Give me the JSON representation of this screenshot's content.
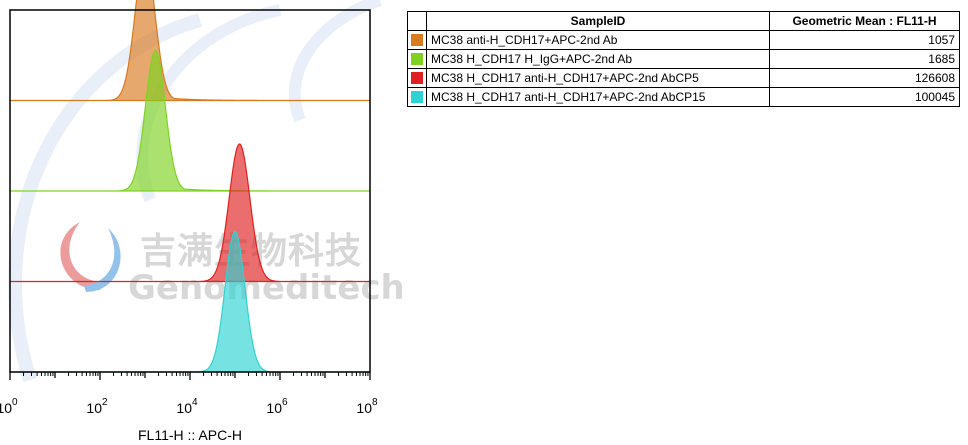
{
  "chart_data": {
    "type": "area",
    "xlabel": "FL11-H :: APC-H",
    "xscale": "log",
    "xlim": [
      1,
      100000000
    ],
    "xticks": [
      {
        "value": 1,
        "base": "10",
        "exp": "0"
      },
      {
        "value": 100,
        "base": "10",
        "exp": "2"
      },
      {
        "value": 10000,
        "base": "10",
        "exp": "4"
      },
      {
        "value": 1000000,
        "base": "10",
        "exp": "6"
      },
      {
        "value": 100000000,
        "base": "10",
        "exp": "8"
      }
    ],
    "series": [
      {
        "name": "MC38 anti-H_CDH17+APC-2nd Ab",
        "color": "#d87a1e",
        "peak_x": 1000,
        "width_decades": 0.22,
        "height": 1.0
      },
      {
        "name": "MC38 H_CDH17 H_IgG+APC-2nd Ab",
        "color": "#7ed321",
        "peak_x": 1700,
        "width_decades": 0.22,
        "height": 0.97
      },
      {
        "name": "MC38 H_CDH17 anti-H_CDH17+APC-2nd AbCP5",
        "color": "#e02020",
        "peak_x": 126000,
        "width_decades": 0.23,
        "height": 0.95
      },
      {
        "name": "MC38 H_CDH17 anti-H_CDH17+APC-2nd AbCP15",
        "color": "#2ed3d3",
        "peak_x": 100000,
        "width_decades": 0.22,
        "height": 0.97
      }
    ]
  },
  "table": {
    "header_sample": "SampleID",
    "header_value": "Geometric Mean : FL11-H",
    "rows": [
      {
        "name": "MC38 anti-H_CDH17+APC-2nd Ab",
        "value": "1057",
        "color": "#d87a1e"
      },
      {
        "name": "MC38 H_CDH17 H_IgG+APC-2nd Ab",
        "value": "1685",
        "color": "#7ed321"
      },
      {
        "name": "MC38 H_CDH17 anti-H_CDH17+APC-2nd AbCP5",
        "value": "126608",
        "color": "#e02020"
      },
      {
        "name": "MC38 H_CDH17 anti-H_CDH17+APC-2nd AbCP15",
        "value": "100045",
        "color": "#2ed3d3"
      }
    ]
  },
  "watermark": {
    "text_cn": "吉满生物科技",
    "text_en": "Genomeditech"
  }
}
